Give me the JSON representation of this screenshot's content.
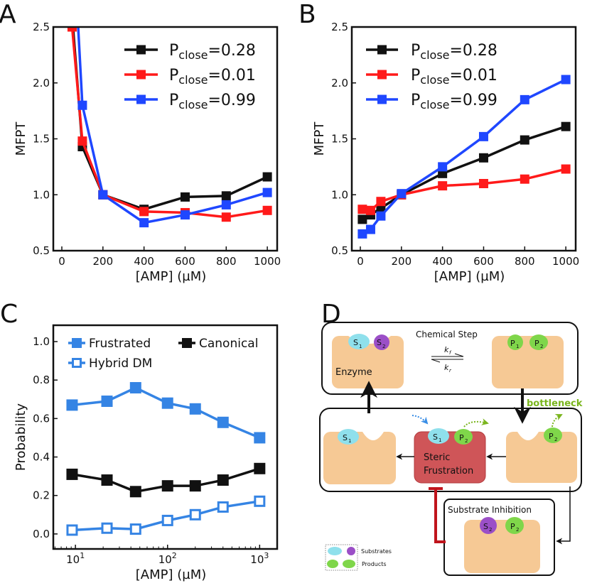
{
  "panels": {
    "a": "A",
    "b": "B",
    "c": "C",
    "d": "D"
  },
  "chart_data": [
    {
      "id": "A",
      "type": "line",
      "xlabel": "[AMP] (µM)",
      "ylabel": "MFPT",
      "xlim": [
        -41.5,
        1048
      ],
      "ylim": [
        0.5,
        2.5
      ],
      "xticks": [
        0,
        200,
        400,
        600,
        800,
        1000
      ],
      "xtick_labels": [
        "0",
        "200",
        "400",
        "600",
        "800",
        "1000"
      ],
      "yticks": [
        0.5,
        1.0,
        1.5,
        2.0,
        2.5
      ],
      "ytick_labels": [
        "0.5",
        "1.0",
        "1.5",
        "2.0",
        "2.5"
      ],
      "legend_position": "top-right",
      "grid": false,
      "series": [
        {
          "prefix": "P",
          "sub": "close",
          "suffix": "=0.28",
          "color": "#111111",
          "x": [
            50,
            100,
            200,
            400,
            600,
            800,
            1000
          ],
          "y": [
            2.6,
            1.43,
            1.0,
            0.87,
            0.98,
            0.99,
            1.16
          ]
        },
        {
          "prefix": "P",
          "sub": "close",
          "suffix": "=0.01",
          "color": "#ff1a1a",
          "x": [
            50,
            100,
            200,
            400,
            600,
            800,
            1000
          ],
          "y": [
            2.5,
            1.48,
            1.0,
            0.85,
            0.84,
            0.8,
            0.86
          ]
        },
        {
          "prefix": "P",
          "sub": "close",
          "suffix": "=0.99",
          "color": "#1f47ff",
          "x": [
            50,
            100,
            200,
            400,
            600,
            800,
            1000
          ],
          "y": [
            3.5,
            1.8,
            1.0,
            0.75,
            0.82,
            0.91,
            1.02
          ]
        }
      ]
    },
    {
      "id": "B",
      "type": "line",
      "xlabel": "[AMP] (µM)",
      "ylabel": "MFPT",
      "xlim": [
        -41.5,
        1048
      ],
      "ylim": [
        0.5,
        2.5
      ],
      "xticks": [
        0,
        200,
        400,
        600,
        800,
        1000
      ],
      "xtick_labels": [
        "0",
        "200",
        "400",
        "600",
        "800",
        "1000"
      ],
      "yticks": [
        0.5,
        1.0,
        1.5,
        2.0,
        2.5
      ],
      "ytick_labels": [
        "0.5",
        "1.0",
        "1.5",
        "2.0",
        "2.5"
      ],
      "legend_position": "top-left",
      "grid": false,
      "series": [
        {
          "prefix": "P",
          "sub": "close",
          "suffix": "=0.28",
          "color": "#111111",
          "x": [
            10,
            50,
            100,
            200,
            400,
            600,
            800,
            1000
          ],
          "y": [
            0.78,
            0.82,
            0.88,
            1.0,
            1.19,
            1.33,
            1.49,
            1.61
          ]
        },
        {
          "prefix": "P",
          "sub": "close",
          "suffix": "=0.01",
          "color": "#ff1a1a",
          "x": [
            10,
            50,
            100,
            200,
            400,
            600,
            800,
            1000
          ],
          "y": [
            0.87,
            0.86,
            0.94,
            1.0,
            1.08,
            1.1,
            1.14,
            1.23
          ]
        },
        {
          "prefix": "P",
          "sub": "close",
          "suffix": "=0.99",
          "color": "#1f47ff",
          "x": [
            10,
            50,
            100,
            200,
            400,
            600,
            800,
            1000
          ],
          "y": [
            0.65,
            0.69,
            0.81,
            1.01,
            1.25,
            1.52,
            1.85,
            2.03
          ]
        }
      ]
    },
    {
      "id": "C",
      "type": "line",
      "xscale": "log",
      "xlabel": "[AMP] (µM)",
      "ylabel": "Probability",
      "xlim": [
        5.75,
        1550
      ],
      "ylim": [
        -0.078,
        1.085
      ],
      "xticks": [
        10,
        100,
        1000
      ],
      "xtick_labels": [
        {
          "base": "10",
          "exp": "1"
        },
        {
          "base": "10",
          "exp": "2"
        },
        {
          "base": "10",
          "exp": "3"
        }
      ],
      "yticks": [
        0.0,
        0.2,
        0.4,
        0.6,
        0.8,
        1.0
      ],
      "ytick_labels": [
        "0.0",
        "0.2",
        "0.4",
        "0.6",
        "0.8",
        "1.0"
      ],
      "legend_position": "top",
      "grid": false,
      "series": [
        {
          "name": "Frustrated",
          "color": "#3584e4",
          "filled": true,
          "x": [
            9.2,
            22,
            45,
            100,
            200,
            400,
            1000
          ],
          "y": [
            0.67,
            0.69,
            0.76,
            0.68,
            0.65,
            0.58,
            0.5
          ]
        },
        {
          "name": "Canonical",
          "color": "#111111",
          "filled": true,
          "x": [
            9.2,
            22,
            45,
            100,
            200,
            400,
            1000
          ],
          "y": [
            0.31,
            0.28,
            0.22,
            0.25,
            0.25,
            0.28,
            0.34
          ]
        },
        {
          "name": "Hybrid DM",
          "color": "#3584e4",
          "filled": false,
          "x": [
            9.2,
            22,
            45,
            100,
            200,
            400,
            1000
          ],
          "y": [
            0.02,
            0.03,
            0.025,
            0.07,
            0.1,
            0.14,
            0.17
          ]
        }
      ]
    }
  ],
  "diagram": {
    "chemical_step": "Chemical Step",
    "kf": "k",
    "kf_sub": "f",
    "kr": "k",
    "kr_sub": "r",
    "enzyme": "Enzyme",
    "bottleneck": "bottleneck",
    "steric_1": "Steric",
    "steric_2": "Frustration",
    "substrate_inhibition": "Substrate Inhibition",
    "s": "S",
    "p": "P",
    "one": "1",
    "two": "2",
    "legend_substrates": "Substrates",
    "legend_products": "Products",
    "colors": {
      "enzyme": "#f6c995",
      "s1": "#8fe0ec",
      "s2": "#9b4fc7",
      "product": "#7fd64a",
      "steric": "#cf5558",
      "bottleneck": "#7ab51d",
      "inhibit": "#c0141c"
    }
  }
}
